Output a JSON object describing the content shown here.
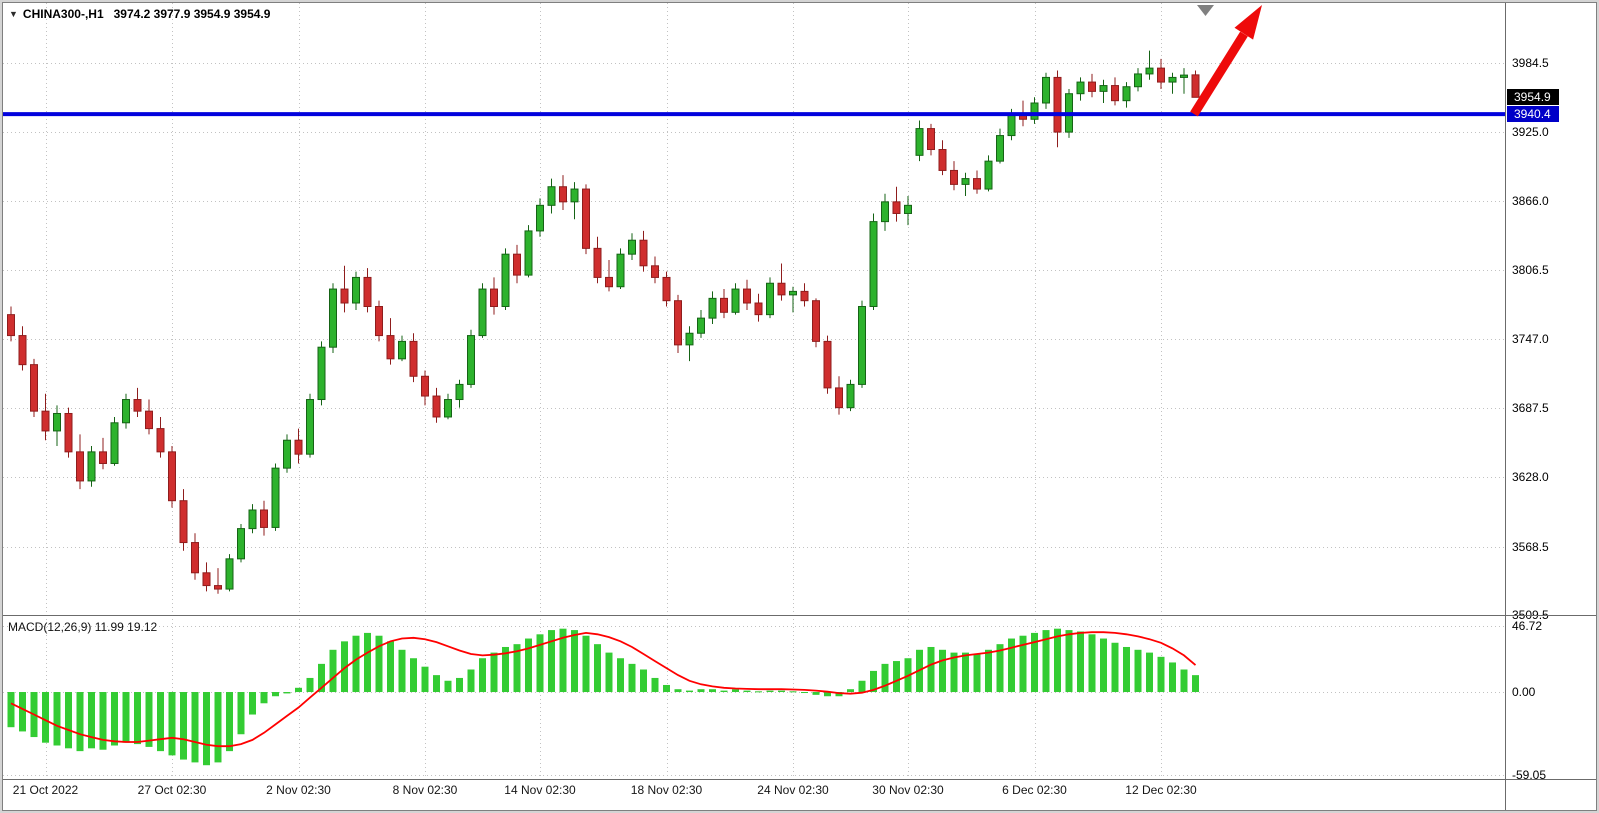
{
  "window": {
    "marker_icon": "▼",
    "symbol": "CHINA300-,H1",
    "ohlc": "3974.2 3977.9 3954.9 3954.9"
  },
  "main_panel": {
    "price_ticks": [
      "3984.5",
      "3925.0",
      "3866.0",
      "3806.5",
      "3747.0",
      "3687.5",
      "3628.0",
      "3568.5",
      "3509.5"
    ],
    "current_price_badge": {
      "text": "3954.9",
      "bg": "#000000"
    },
    "hline_badge": {
      "text": "3940.4",
      "bg": "#0000c8"
    }
  },
  "macd_panel": {
    "label": "MACD(12,26,9) 11.99 19.12",
    "ticks": [
      "46.72",
      "0.00",
      "-59.05"
    ]
  },
  "time_axis": {
    "ticks": [
      {
        "label": "21 Oct 2022",
        "index": 3
      },
      {
        "label": "27 Oct 02:30",
        "index": 14
      },
      {
        "label": "2 Nov 02:30",
        "index": 25
      },
      {
        "label": "8 Nov 02:30",
        "index": 36
      },
      {
        "label": "14 Nov 02:30",
        "index": 46
      },
      {
        "label": "18 Nov 02:30",
        "index": 57
      },
      {
        "label": "24 Nov 02:30",
        "index": 68
      },
      {
        "label": "30 Nov 02:30",
        "index": 78
      },
      {
        "label": "6 Dec 02:30",
        "index": 89
      },
      {
        "label": "12 Dec 02:30",
        "index": 100
      }
    ]
  },
  "colors": {
    "bull": "#2db22d",
    "bull_border": "#156315",
    "bear": "#cf2e2e",
    "bear_border": "#8f1d1d",
    "macd_bar": "#33cc33",
    "signal": "#ff0000",
    "grid": "#c2c2c2",
    "hline": "#0202dd",
    "arrow": "#ee0a0a",
    "marker": "#808080"
  },
  "chart_data": [
    {
      "type": "candlestick",
      "symbol": "CHINA300-",
      "timeframe": "H1",
      "ylim": [
        3509.7,
        4036
      ],
      "y_ticks": [
        3984.5,
        3925.0,
        3866.0,
        3806.5,
        3747.0,
        3687.5,
        3628.0,
        3568.5,
        3509.5
      ],
      "hline": 3940.4,
      "last_price": 3954.9,
      "last_bar_ohlc": [
        3974.2,
        3977.9,
        3954.9,
        3954.9
      ],
      "ohlc": [
        [
          3768,
          3775,
          3745,
          3750
        ],
        [
          3750,
          3758,
          3720,
          3725
        ],
        [
          3725,
          3730,
          3680,
          3685
        ],
        [
          3685,
          3700,
          3660,
          3668
        ],
        [
          3668,
          3690,
          3655,
          3683
        ],
        [
          3683,
          3688,
          3645,
          3650
        ],
        [
          3650,
          3665,
          3618,
          3625
        ],
        [
          3625,
          3655,
          3620,
          3650
        ],
        [
          3650,
          3662,
          3635,
          3640
        ],
        [
          3640,
          3680,
          3638,
          3675
        ],
        [
          3675,
          3700,
          3670,
          3695
        ],
        [
          3695,
          3705,
          3680,
          3685
        ],
        [
          3685,
          3695,
          3665,
          3670
        ],
        [
          3670,
          3680,
          3645,
          3650
        ],
        [
          3650,
          3655,
          3602,
          3608
        ],
        [
          3608,
          3618,
          3565,
          3572
        ],
        [
          3572,
          3580,
          3540,
          3546
        ],
        [
          3546,
          3555,
          3530,
          3535
        ],
        [
          3535,
          3550,
          3528,
          3532
        ],
        [
          3532,
          3562,
          3530,
          3558
        ],
        [
          3558,
          3588,
          3555,
          3584
        ],
        [
          3584,
          3605,
          3580,
          3600
        ],
        [
          3600,
          3608,
          3578,
          3585
        ],
        [
          3585,
          3640,
          3582,
          3636
        ],
        [
          3636,
          3665,
          3632,
          3660
        ],
        [
          3660,
          3670,
          3640,
          3648
        ],
        [
          3648,
          3700,
          3645,
          3695
        ],
        [
          3695,
          3745,
          3690,
          3740
        ],
        [
          3740,
          3795,
          3735,
          3790
        ],
        [
          3790,
          3810,
          3770,
          3778
        ],
        [
          3778,
          3805,
          3772,
          3800
        ],
        [
          3800,
          3808,
          3770,
          3775
        ],
        [
          3775,
          3780,
          3745,
          3750
        ],
        [
          3750,
          3765,
          3725,
          3730
        ],
        [
          3730,
          3750,
          3728,
          3745
        ],
        [
          3745,
          3752,
          3710,
          3715
        ],
        [
          3715,
          3720,
          3690,
          3698
        ],
        [
          3698,
          3705,
          3675,
          3680
        ],
        [
          3680,
          3700,
          3678,
          3695
        ],
        [
          3695,
          3712,
          3688,
          3708
        ],
        [
          3708,
          3755,
          3705,
          3750
        ],
        [
          3750,
          3795,
          3748,
          3790
        ],
        [
          3790,
          3800,
          3768,
          3775
        ],
        [
          3775,
          3825,
          3772,
          3820
        ],
        [
          3820,
          3828,
          3795,
          3802
        ],
        [
          3802,
          3845,
          3800,
          3840
        ],
        [
          3840,
          3868,
          3835,
          3862
        ],
        [
          3862,
          3885,
          3855,
          3878
        ],
        [
          3878,
          3888,
          3858,
          3865
        ],
        [
          3865,
          3882,
          3850,
          3876
        ],
        [
          3876,
          3880,
          3820,
          3825
        ],
        [
          3825,
          3835,
          3795,
          3800
        ],
        [
          3800,
          3815,
          3788,
          3792
        ],
        [
          3792,
          3825,
          3790,
          3820
        ],
        [
          3820,
          3838,
          3815,
          3832
        ],
        [
          3832,
          3840,
          3805,
          3810
        ],
        [
          3810,
          3818,
          3795,
          3800
        ],
        [
          3800,
          3805,
          3775,
          3780
        ],
        [
          3780,
          3785,
          3735,
          3742
        ],
        [
          3742,
          3758,
          3728,
          3752
        ],
        [
          3752,
          3772,
          3748,
          3765
        ],
        [
          3765,
          3788,
          3760,
          3782
        ],
        [
          3782,
          3790,
          3765,
          3770
        ],
        [
          3770,
          3795,
          3768,
          3790
        ],
        [
          3790,
          3798,
          3772,
          3778
        ],
        [
          3778,
          3786,
          3762,
          3768
        ],
        [
          3768,
          3800,
          3765,
          3795
        ],
        [
          3795,
          3812,
          3780,
          3785
        ],
        [
          3785,
          3792,
          3770,
          3788
        ],
        [
          3788,
          3795,
          3775,
          3780
        ],
        [
          3780,
          3782,
          3740,
          3745
        ],
        [
          3745,
          3750,
          3700,
          3705
        ],
        [
          3705,
          3715,
          3682,
          3688
        ],
        [
          3688,
          3712,
          3685,
          3708
        ],
        [
          3708,
          3780,
          3705,
          3775
        ],
        [
          3775,
          3855,
          3772,
          3848
        ],
        [
          3848,
          3872,
          3840,
          3865
        ],
        [
          3865,
          3878,
          3848,
          3855
        ],
        [
          3855,
          3870,
          3845,
          3862
        ],
        [
          3905,
          3935,
          3900,
          3928
        ],
        [
          3928,
          3932,
          3905,
          3910
        ],
        [
          3910,
          3918,
          3888,
          3892
        ],
        [
          3892,
          3900,
          3875,
          3880
        ],
        [
          3880,
          3890,
          3870,
          3885
        ],
        [
          3885,
          3892,
          3872,
          3876
        ],
        [
          3876,
          3905,
          3874,
          3900
        ],
        [
          3900,
          3928,
          3898,
          3922
        ],
        [
          3922,
          3945,
          3918,
          3940
        ],
        [
          3940,
          3952,
          3930,
          3936
        ],
        [
          3936,
          3955,
          3932,
          3950
        ],
        [
          3950,
          3976,
          3945,
          3972
        ],
        [
          3972,
          3978,
          3912,
          3925
        ],
        [
          3925,
          3962,
          3920,
          3958
        ],
        [
          3958,
          3972,
          3952,
          3968
        ],
        [
          3968,
          3975,
          3955,
          3960
        ],
        [
          3960,
          3970,
          3950,
          3965
        ],
        [
          3965,
          3972,
          3948,
          3952
        ],
        [
          3952,
          3968,
          3946,
          3964
        ],
        [
          3964,
          3980,
          3960,
          3975
        ],
        [
          3975,
          3995,
          3970,
          3980
        ],
        [
          3980,
          3988,
          3962,
          3968
        ],
        [
          3968,
          3976,
          3958,
          3972
        ],
        [
          3972,
          3980,
          3958,
          3974
        ],
        [
          3974.2,
          3977.9,
          3954.9,
          3954.9
        ]
      ]
    },
    {
      "type": "bar",
      "name": "MACD(12,26,9)",
      "macd_value": 11.99,
      "signal_value": 19.12,
      "ylim": [
        -61.8,
        53.3
      ],
      "y_ticks": [
        46.72,
        0,
        -59.05
      ],
      "histogram": [
        -25,
        -28,
        -32,
        -36,
        -38,
        -40,
        -42,
        -40,
        -41,
        -38,
        -36,
        -37,
        -39,
        -42,
        -45,
        -48,
        -50,
        -52,
        -50,
        -42,
        -30,
        -16,
        -8,
        -3,
        -1,
        3,
        10,
        20,
        30,
        36,
        40,
        42,
        40,
        36,
        30,
        24,
        18,
        12,
        8,
        10,
        16,
        24,
        28,
        32,
        34,
        38,
        41,
        44,
        45,
        44,
        40,
        34,
        28,
        24,
        20,
        16,
        10,
        5,
        2,
        1,
        2,
        2,
        1,
        2,
        1,
        0.5,
        1,
        1,
        0.5,
        -0.5,
        -2,
        -3,
        -3,
        2,
        8,
        15,
        20,
        22,
        24,
        30,
        32,
        30,
        28,
        28,
        27,
        30,
        34,
        38,
        40,
        42,
        44,
        45,
        44,
        43,
        41,
        38,
        35,
        32,
        30,
        28,
        25,
        21,
        16,
        11.99
      ],
      "signal": [
        -8,
        -12,
        -16,
        -20,
        -24,
        -27,
        -30,
        -32,
        -34,
        -35,
        -35.5,
        -35.5,
        -34.5,
        -33.5,
        -32.5,
        -33.5,
        -35.5,
        -37.5,
        -38.5,
        -38.5,
        -37,
        -34,
        -29,
        -23,
        -17,
        -11,
        -4,
        3,
        10,
        17,
        23,
        28,
        32.5,
        36,
        38,
        38.5,
        37.5,
        35.5,
        32.5,
        29.5,
        27,
        26,
        26.5,
        27.5,
        29,
        31,
        33.5,
        36,
        38.5,
        40.5,
        42,
        41,
        39,
        36,
        32,
        27,
        22,
        17,
        12,
        8,
        5.5,
        4,
        3,
        2.5,
        2.2,
        2,
        2,
        2,
        1.8,
        1.5,
        1,
        0.2,
        -0.8,
        -1.2,
        -0.5,
        1.5,
        4.5,
        8,
        11.5,
        15.5,
        19.5,
        22.5,
        24.5,
        26,
        27,
        28,
        29.5,
        31.5,
        33.5,
        35.5,
        37.5,
        39.5,
        41,
        42,
        42.5,
        42.5,
        42,
        41,
        39.5,
        37.5,
        35,
        31,
        26,
        19.12
      ]
    }
  ]
}
